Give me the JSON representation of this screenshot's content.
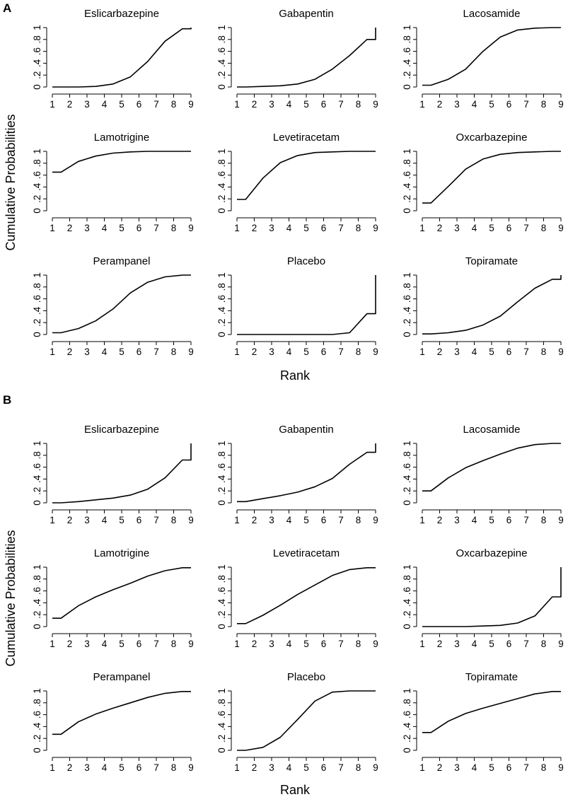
{
  "y_axis_label": "Cumulative Probabilities",
  "x_axis_label": "Rank",
  "colors": {
    "line": "#000000",
    "background": "#ffffff"
  },
  "chart_data": [
    {
      "panel": "A",
      "type": "line",
      "xlabel": "Rank",
      "ylabel": "Cumulative Probabilities",
      "x_ticks": [
        "1",
        "2",
        "3",
        "4",
        "5",
        "6",
        "7",
        "8",
        "9"
      ],
      "y_ticks": [
        "0",
        ".2",
        ".4",
        ".6",
        ".8",
        "1"
      ],
      "xlim": [
        1,
        9
      ],
      "ylim": [
        0,
        1
      ],
      "subplots": [
        {
          "title": "Eslicarbazepine",
          "x": [
            1,
            1.5,
            2.5,
            3.5,
            4.5,
            5.5,
            6.5,
            7.5,
            8.5,
            9,
            9
          ],
          "y": [
            0,
            0,
            0,
            0.01,
            0.05,
            0.17,
            0.43,
            0.77,
            0.98,
            0.98,
            1
          ]
        },
        {
          "title": "Gabapentin",
          "x": [
            1,
            1.5,
            2.5,
            3.5,
            4.5,
            5.5,
            6.5,
            7.5,
            8.5,
            9,
            9
          ],
          "y": [
            0,
            0,
            0.01,
            0.02,
            0.05,
            0.13,
            0.3,
            0.53,
            0.8,
            0.8,
            1
          ]
        },
        {
          "title": "Lacosamide",
          "x": [
            1,
            1.5,
            2.5,
            3.5,
            4.5,
            5.5,
            6.5,
            7.5,
            8.5,
            9
          ],
          "y": [
            0.03,
            0.03,
            0.13,
            0.3,
            0.6,
            0.84,
            0.96,
            0.99,
            1,
            1
          ]
        },
        {
          "title": "Lamotrigine",
          "x": [
            1,
            1.5,
            2.5,
            3.5,
            4.5,
            5.5,
            6.5,
            7.5,
            8.5,
            9
          ],
          "y": [
            0.65,
            0.65,
            0.83,
            0.92,
            0.97,
            0.99,
            1,
            1,
            1,
            1
          ]
        },
        {
          "title": "Levetiracetam",
          "x": [
            1,
            1.5,
            2.5,
            3.5,
            4.5,
            5.5,
            6.5,
            7.5,
            8.5,
            9
          ],
          "y": [
            0.19,
            0.19,
            0.55,
            0.81,
            0.93,
            0.98,
            0.99,
            1,
            1,
            1
          ]
        },
        {
          "title": "Oxcarbazepine",
          "x": [
            1,
            1.5,
            2.5,
            3.5,
            4.5,
            5.5,
            6.5,
            7.5,
            8.5,
            9
          ],
          "y": [
            0.13,
            0.13,
            0.41,
            0.7,
            0.87,
            0.95,
            0.98,
            0.99,
            1,
            1
          ]
        },
        {
          "title": "Perampanel",
          "x": [
            1,
            1.5,
            2.5,
            3.5,
            4.5,
            5.5,
            6.5,
            7.5,
            8.5,
            9
          ],
          "y": [
            0.03,
            0.03,
            0.1,
            0.23,
            0.43,
            0.7,
            0.88,
            0.97,
            1,
            1
          ]
        },
        {
          "title": "Placebo",
          "x": [
            1,
            1.5,
            2.5,
            3.5,
            4.5,
            5.5,
            6.5,
            7.5,
            8.5,
            9,
            9
          ],
          "y": [
            0,
            0,
            0,
            0,
            0,
            0,
            0,
            0.03,
            0.35,
            0.35,
            1
          ]
        },
        {
          "title": "Topiramate",
          "x": [
            1,
            1.5,
            2.5,
            3.5,
            4.5,
            5.5,
            6.5,
            7.5,
            8.5,
            9,
            9
          ],
          "y": [
            0.01,
            0.01,
            0.03,
            0.07,
            0.16,
            0.31,
            0.55,
            0.78,
            0.93,
            0.93,
            1
          ]
        }
      ]
    },
    {
      "panel": "B",
      "type": "line",
      "xlabel": "Rank",
      "ylabel": "Cumulative Probabilities",
      "x_ticks": [
        "1",
        "2",
        "3",
        "4",
        "5",
        "6",
        "7",
        "8",
        "9"
      ],
      "y_ticks": [
        "0",
        ".2",
        ".4",
        ".6",
        ".8",
        "1"
      ],
      "xlim": [
        1,
        9
      ],
      "ylim": [
        0,
        1
      ],
      "subplots": [
        {
          "title": "Eslicarbazepine",
          "x": [
            1,
            1.5,
            2.5,
            3.5,
            4.5,
            5.5,
            6.5,
            7.5,
            8.5,
            9,
            9
          ],
          "y": [
            0,
            0,
            0.02,
            0.05,
            0.08,
            0.13,
            0.23,
            0.42,
            0.72,
            0.72,
            1
          ]
        },
        {
          "title": "Gabapentin",
          "x": [
            1,
            1.5,
            2.5,
            3.5,
            4.5,
            5.5,
            6.5,
            7.5,
            8.5,
            9,
            9
          ],
          "y": [
            0.02,
            0.02,
            0.07,
            0.12,
            0.18,
            0.27,
            0.41,
            0.65,
            0.85,
            0.85,
            1
          ]
        },
        {
          "title": "Lacosamide",
          "x": [
            1,
            1.5,
            2.5,
            3.5,
            4.5,
            5.5,
            6.5,
            7.5,
            8.5,
            9
          ],
          "y": [
            0.2,
            0.2,
            0.42,
            0.59,
            0.71,
            0.82,
            0.92,
            0.98,
            1,
            1
          ]
        },
        {
          "title": "Lamotrigine",
          "x": [
            1,
            1.5,
            2.5,
            3.5,
            4.5,
            5.5,
            6.5,
            7.5,
            8.5,
            9
          ],
          "y": [
            0.14,
            0.14,
            0.35,
            0.5,
            0.62,
            0.73,
            0.85,
            0.94,
            0.99,
            0.99
          ]
        },
        {
          "title": "Levetiracetam",
          "x": [
            1,
            1.5,
            2.5,
            3.5,
            4.5,
            5.5,
            6.5,
            7.5,
            8.5,
            9
          ],
          "y": [
            0.05,
            0.05,
            0.19,
            0.36,
            0.54,
            0.7,
            0.86,
            0.96,
            0.99,
            0.99
          ]
        },
        {
          "title": "Oxcarbazepine",
          "x": [
            1,
            1.5,
            2.5,
            3.5,
            4.5,
            5.5,
            6.5,
            7.5,
            8.5,
            9,
            9
          ],
          "y": [
            0,
            0,
            0,
            0,
            0.01,
            0.02,
            0.06,
            0.18,
            0.5,
            0.5,
            1
          ]
        },
        {
          "title": "Perampanel",
          "x": [
            1,
            1.5,
            2.5,
            3.5,
            4.5,
            5.5,
            6.5,
            7.5,
            8.5,
            9
          ],
          "y": [
            0.27,
            0.27,
            0.48,
            0.61,
            0.71,
            0.8,
            0.89,
            0.96,
            0.99,
            0.99
          ]
        },
        {
          "title": "Placebo",
          "x": [
            1,
            1.5,
            2.5,
            3.5,
            4.5,
            5.5,
            6.5,
            7.5,
            8.5,
            9
          ],
          "y": [
            0,
            0,
            0.05,
            0.22,
            0.52,
            0.83,
            0.98,
            1,
            1,
            1
          ]
        },
        {
          "title": "Topiramate",
          "x": [
            1,
            1.5,
            2.5,
            3.5,
            4.5,
            5.5,
            6.5,
            7.5,
            8.5,
            9
          ],
          "y": [
            0.3,
            0.3,
            0.49,
            0.62,
            0.71,
            0.79,
            0.87,
            0.95,
            0.99,
            0.99
          ]
        }
      ]
    }
  ]
}
